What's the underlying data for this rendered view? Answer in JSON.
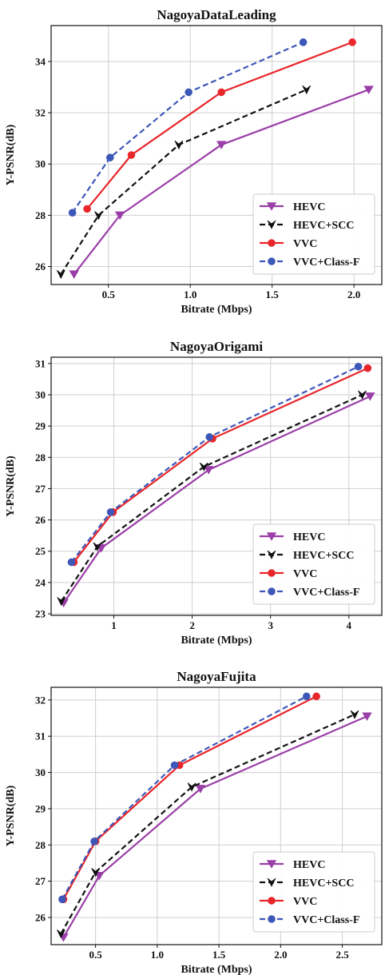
{
  "chart_data": [
    {
      "type": "line",
      "title": "NagoyaDataLeading",
      "xlabel": "Bitrate (Mbps)",
      "ylabel": "Y-PSNR(dB)",
      "xlim": [
        0.15,
        2.17
      ],
      "ylim": [
        25.3,
        35.4
      ],
      "xticks": [
        0.5,
        1.0,
        1.5,
        2.0
      ],
      "xtick_labels": [
        "0.5",
        "1.0",
        "1.5",
        "2.0"
      ],
      "yticks": [
        26,
        28,
        30,
        32,
        34
      ],
      "ytick_labels": [
        "26",
        "28",
        "30",
        "32",
        "34"
      ],
      "grid": true,
      "legend_position": "lower-right",
      "series": [
        {
          "name": "HEVC",
          "color": "#9B3FA8",
          "dash": "solid",
          "marker": "triangle-down",
          "x": [
            0.29,
            0.57,
            1.19,
            2.09
          ],
          "y": [
            25.7,
            28.0,
            30.75,
            32.9
          ]
        },
        {
          "name": "HEVC+SCC",
          "color": "#111111",
          "dash": "dashed",
          "marker": "tri-down",
          "x": [
            0.21,
            0.44,
            0.93,
            1.71
          ],
          "y": [
            25.7,
            28.0,
            30.75,
            32.9
          ]
        },
        {
          "name": "VVC",
          "color": "#E8262B",
          "dash": "solid",
          "marker": "circle",
          "x": [
            0.37,
            0.64,
            1.19,
            1.99
          ],
          "y": [
            28.25,
            30.35,
            32.8,
            34.75
          ]
        },
        {
          "name": "VVC+Class-F",
          "color": "#3D57B8",
          "dash": "dashed",
          "marker": "circle",
          "x": [
            0.28,
            0.51,
            0.99,
            1.69
          ],
          "y": [
            28.1,
            30.25,
            32.8,
            34.75
          ]
        }
      ]
    },
    {
      "type": "line",
      "title": "NagoyaOrigami",
      "xlabel": "Bitrate (Mbps)",
      "ylabel": "Y-PSNR(dB)",
      "xlim": [
        0.2,
        4.42
      ],
      "ylim": [
        22.95,
        31.2
      ],
      "xticks": [
        1,
        2,
        3,
        4
      ],
      "xtick_labels": [
        "1",
        "2",
        "3",
        "4"
      ],
      "yticks": [
        23,
        24,
        25,
        26,
        27,
        28,
        29,
        30,
        31
      ],
      "ytick_labels": [
        "23",
        "24",
        "25",
        "26",
        "27",
        "28",
        "29",
        "30",
        "31"
      ],
      "grid": true,
      "legend_position": "lower-right",
      "series": [
        {
          "name": "HEVC",
          "color": "#9B3FA8",
          "dash": "solid",
          "marker": "triangle-down",
          "x": [
            0.36,
            0.84,
            2.21,
            4.27
          ],
          "y": [
            23.35,
            25.1,
            27.6,
            29.95
          ]
        },
        {
          "name": "HEVC+SCC",
          "color": "#111111",
          "dash": "dashed",
          "marker": "tri-down",
          "x": [
            0.33,
            0.79,
            2.15,
            4.17
          ],
          "y": [
            23.4,
            25.15,
            27.7,
            30.0
          ]
        },
        {
          "name": "VVC",
          "color": "#E8262B",
          "dash": "solid",
          "marker": "circle",
          "x": [
            0.49,
            0.99,
            2.26,
            4.24
          ],
          "y": [
            24.65,
            26.25,
            28.6,
            30.85
          ]
        },
        {
          "name": "VVC+Class-F",
          "color": "#3D57B8",
          "dash": "dashed",
          "marker": "circle",
          "x": [
            0.46,
            0.96,
            2.22,
            4.12
          ],
          "y": [
            24.65,
            26.25,
            28.65,
            30.9
          ]
        }
      ]
    },
    {
      "type": "line",
      "title": "NagoyaFujita",
      "xlabel": "Bitrate (Mbps)",
      "ylabel": "Y-PSNR(dB)",
      "xlim": [
        0.14,
        2.82
      ],
      "ylim": [
        25.25,
        32.35
      ],
      "xticks": [
        0.5,
        1.0,
        1.5,
        2.0,
        2.5
      ],
      "xtick_labels": [
        "0.5",
        "1.0",
        "1.5",
        "2.0",
        "2.5"
      ],
      "yticks": [
        26,
        27,
        28,
        29,
        30,
        31,
        32
      ],
      "ytick_labels": [
        "26",
        "27",
        "28",
        "29",
        "30",
        "31",
        "32"
      ],
      "grid": true,
      "legend_position": "lower-right",
      "series": [
        {
          "name": "HEVC",
          "color": "#9B3FA8",
          "dash": "solid",
          "marker": "triangle-down",
          "x": [
            0.24,
            0.53,
            1.35,
            2.7
          ],
          "y": [
            25.45,
            27.15,
            29.55,
            31.55
          ]
        },
        {
          "name": "HEVC+SCC",
          "color": "#111111",
          "dash": "dashed",
          "marker": "tri-down",
          "x": [
            0.22,
            0.5,
            1.28,
            2.6
          ],
          "y": [
            25.55,
            27.25,
            29.6,
            31.6
          ]
        },
        {
          "name": "VVC",
          "color": "#E8262B",
          "dash": "solid",
          "marker": "circle",
          "x": [
            0.24,
            0.5,
            1.18,
            2.29
          ],
          "y": [
            26.5,
            28.1,
            30.2,
            32.1
          ]
        },
        {
          "name": "VVC+Class-F",
          "color": "#3D57B8",
          "dash": "dashed",
          "marker": "circle",
          "x": [
            0.23,
            0.49,
            1.14,
            2.21
          ],
          "y": [
            26.5,
            28.1,
            30.2,
            32.1
          ]
        }
      ]
    }
  ]
}
